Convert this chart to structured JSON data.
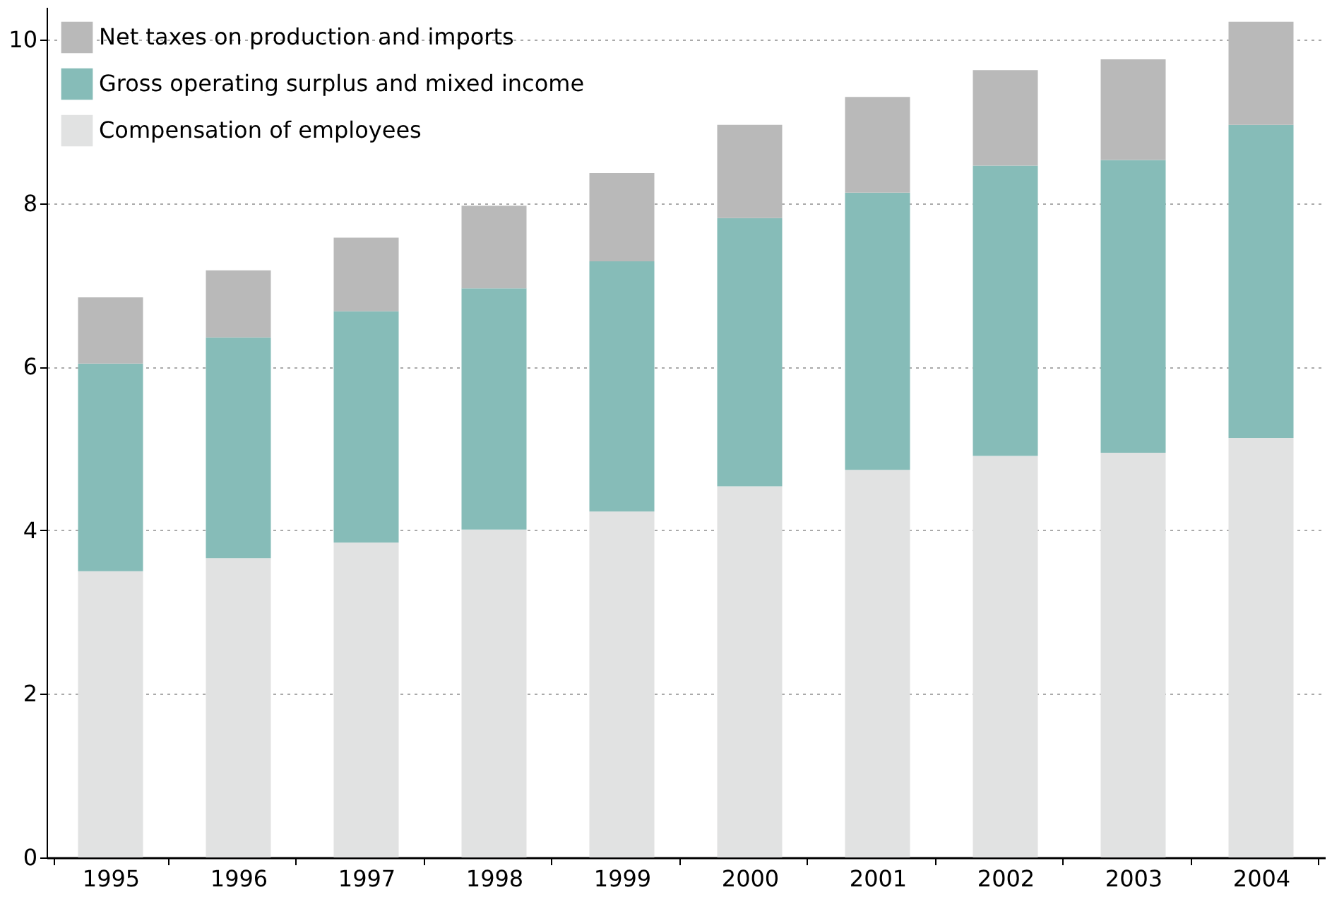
{
  "chart_data": {
    "type": "bar",
    "stacked": true,
    "categories": [
      "1995",
      "1996",
      "1997",
      "1998",
      "1999",
      "2000",
      "2001",
      "2002",
      "2003",
      "2004"
    ],
    "series": [
      {
        "name": "Compensation of employees",
        "color": "#e1e2e2",
        "values": [
          3.5,
          3.66,
          3.85,
          4.01,
          4.23,
          4.54,
          4.74,
          4.91,
          4.95,
          5.13
        ]
      },
      {
        "name": "Gross operating surplus and mixed income",
        "color": "#86bcb8",
        "values": [
          2.54,
          2.7,
          2.83,
          2.95,
          3.06,
          3.28,
          3.39,
          3.55,
          3.58,
          3.83
        ]
      },
      {
        "name": "Net taxes on production and imports",
        "color": "#b9b9b9",
        "values": [
          0.81,
          0.82,
          0.9,
          1.01,
          1.08,
          1.14,
          1.17,
          1.17,
          1.23,
          1.26
        ]
      }
    ],
    "ylim": [
      0,
      10.4
    ],
    "yticks": [
      0,
      2,
      4,
      6,
      8,
      10
    ],
    "grid": "y",
    "legend": "top left"
  }
}
